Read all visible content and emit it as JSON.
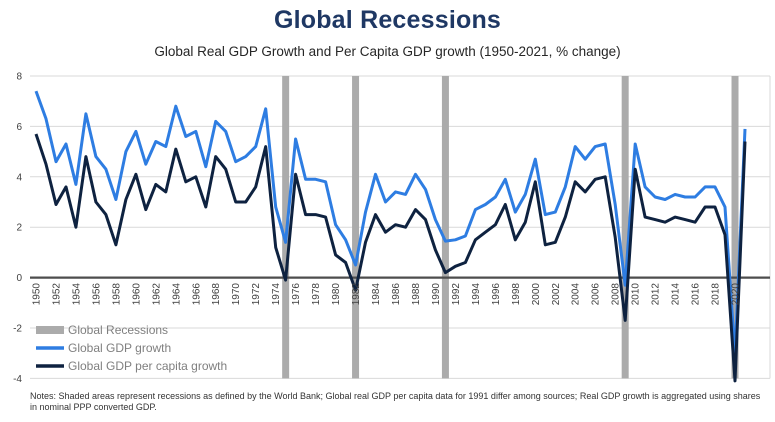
{
  "title": "Global Recessions",
  "subtitle": "Global Real GDP Growth and Per Capita GDP growth (1950-2021, % change)",
  "notes": "Notes: Shaded areas represent recessions as defined by the World Bank; Global real GDP per capita data for 1991 differ among sources; Real GDP growth is aggregated using shares in nominal PPP converted GDP.",
  "chart_data": {
    "type": "line",
    "title": "Global Recessions",
    "subtitle": "Global Real GDP Growth and Per Capita GDP growth (1950-2021, % change)",
    "x": [
      1950,
      1951,
      1952,
      1953,
      1954,
      1955,
      1956,
      1957,
      1958,
      1959,
      1960,
      1961,
      1962,
      1963,
      1964,
      1965,
      1966,
      1967,
      1968,
      1969,
      1970,
      1971,
      1972,
      1973,
      1974,
      1975,
      1976,
      1977,
      1978,
      1979,
      1980,
      1981,
      1982,
      1983,
      1984,
      1985,
      1986,
      1987,
      1988,
      1989,
      1990,
      1991,
      1992,
      1993,
      1994,
      1995,
      1996,
      1997,
      1998,
      1999,
      2000,
      2001,
      2002,
      2003,
      2004,
      2005,
      2006,
      2007,
      2008,
      2009,
      2010,
      2011,
      2012,
      2013,
      2014,
      2015,
      2016,
      2017,
      2018,
      2019,
      2020,
      2021
    ],
    "series": [
      {
        "name": "Global GDP growth",
        "color": "#2e7de2",
        "values": [
          7.4,
          6.3,
          4.6,
          5.3,
          3.7,
          6.5,
          4.8,
          4.3,
          3.1,
          5.0,
          5.8,
          4.5,
          5.4,
          5.2,
          6.8,
          5.6,
          5.8,
          4.4,
          6.2,
          5.8,
          4.6,
          4.8,
          5.2,
          6.7,
          2.8,
          1.4,
          5.5,
          3.9,
          3.9,
          3.8,
          2.1,
          1.5,
          0.5,
          2.6,
          4.1,
          3.0,
          3.4,
          3.3,
          4.1,
          3.5,
          2.3,
          1.45,
          1.5,
          1.65,
          2.7,
          2.9,
          3.2,
          3.9,
          2.6,
          3.3,
          4.7,
          2.5,
          2.6,
          3.6,
          5.2,
          4.7,
          5.2,
          5.3,
          2.9,
          -0.3,
          5.3,
          3.6,
          3.2,
          3.1,
          3.3,
          3.2,
          3.2,
          3.6,
          3.6,
          2.8,
          -3.1,
          5.9
        ]
      },
      {
        "name": "Global GDP per capita growth",
        "color": "#0e2240",
        "values": [
          5.7,
          4.5,
          2.9,
          3.6,
          2.0,
          4.8,
          3.0,
          2.5,
          1.3,
          3.1,
          4.1,
          2.7,
          3.7,
          3.4,
          5.1,
          3.8,
          4.0,
          2.8,
          4.8,
          4.3,
          3.0,
          3.0,
          3.6,
          5.2,
          1.2,
          -0.1,
          4.1,
          2.5,
          2.5,
          2.4,
          0.9,
          0.6,
          -0.5,
          1.4,
          2.5,
          1.8,
          2.1,
          2.0,
          2.7,
          2.3,
          1.1,
          0.2,
          0.45,
          0.6,
          1.5,
          1.8,
          2.1,
          2.9,
          1.5,
          2.2,
          3.8,
          1.3,
          1.4,
          2.4,
          3.8,
          3.4,
          3.9,
          4.0,
          1.6,
          -1.7,
          4.3,
          2.4,
          2.3,
          2.2,
          2.4,
          2.3,
          2.2,
          2.8,
          2.8,
          1.7,
          -4.1,
          5.4
        ]
      }
    ],
    "recession_years": [
      1975,
      1982,
      1991,
      2009,
      2020
    ],
    "recession_color": "#ababab",
    "legend": [
      "Global Recessions",
      "Global GDP growth",
      "Global GDP per capita growth"
    ],
    "legend_text_color": "#7f7f7f",
    "legend_position": "bottom-left",
    "ylim": [
      -4,
      8
    ],
    "yticks": [
      8,
      6,
      4,
      2,
      0,
      -2,
      -4
    ],
    "xtick_step": 2,
    "xtick_first": 1950,
    "xtick_last": 2020,
    "grid": true,
    "grid_color": "#d9d9d9",
    "zero_line_color": "#4d4d4d",
    "axis_text_color": "#404040"
  }
}
